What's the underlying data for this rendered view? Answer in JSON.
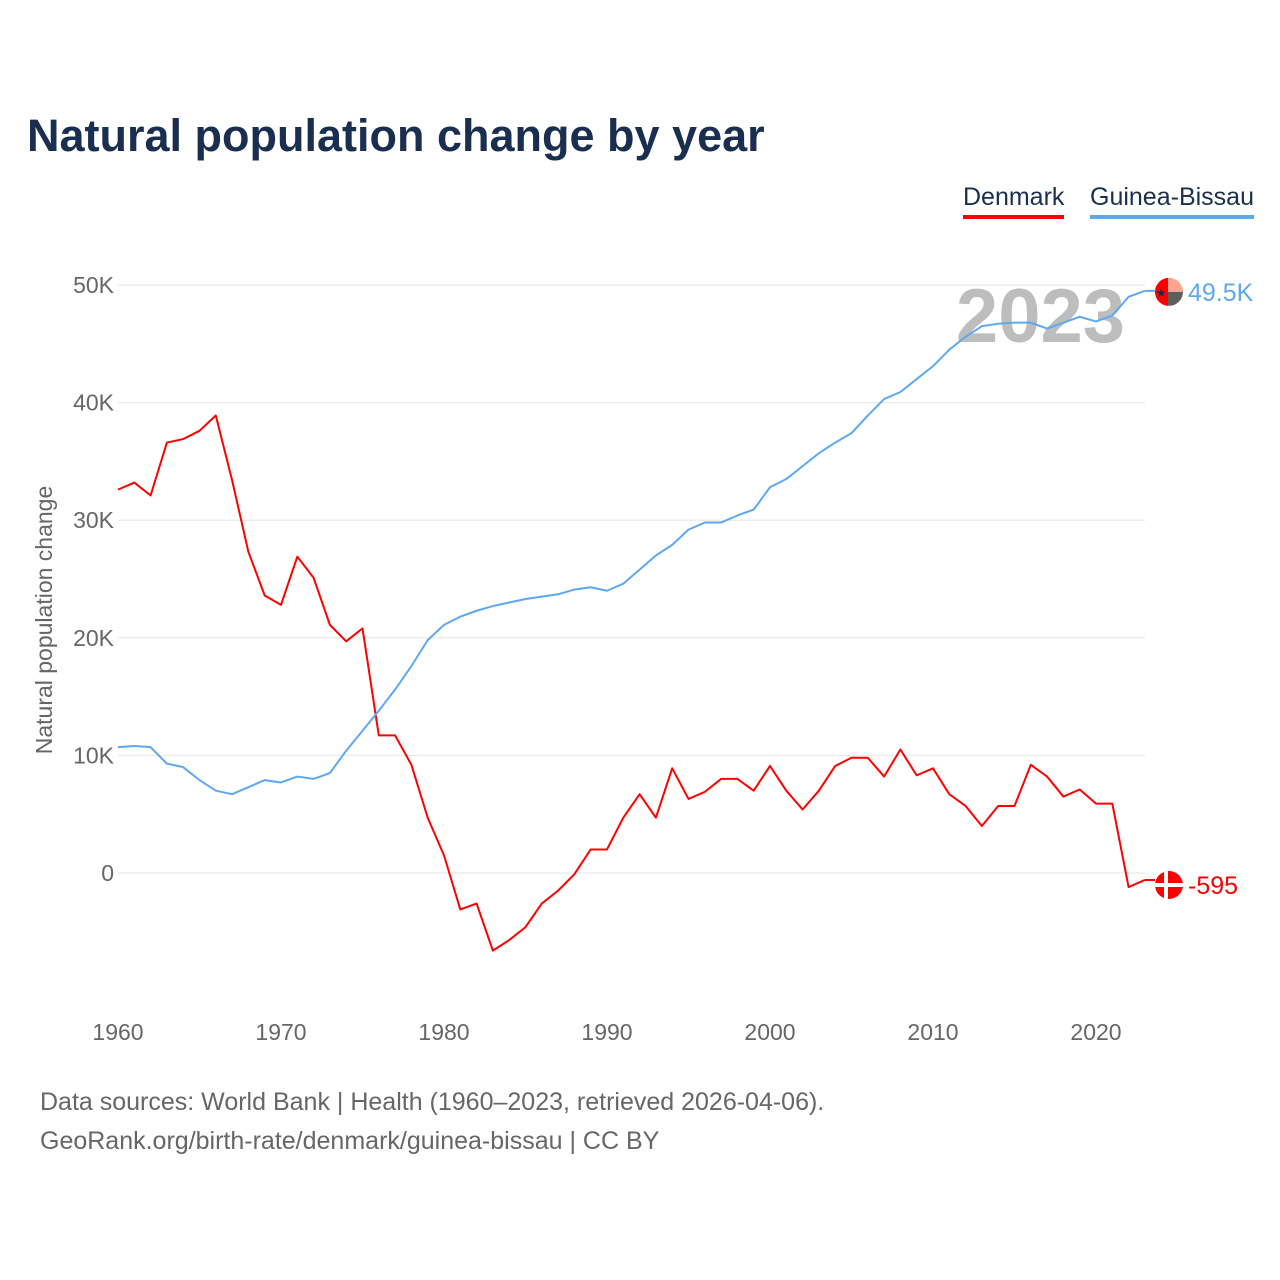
{
  "chart_data": {
    "type": "line",
    "title": "Natural population change by year",
    "ylabel": "Natural population change",
    "xlabel": "",
    "ylim": [
      -11000,
      50500
    ],
    "xlim": [
      1960,
      2026
    ],
    "yticks": [
      0,
      10000,
      20000,
      30000,
      40000,
      50000
    ],
    "ytick_labels": [
      "0",
      "10K",
      "20K",
      "30K",
      "40K",
      "50K"
    ],
    "xticks": [
      1960,
      1970,
      1980,
      1990,
      2000,
      2010,
      2020
    ],
    "xtick_labels": [
      "1960",
      "1970",
      "1980",
      "1990",
      "2000",
      "2010",
      "2020"
    ],
    "grid": true,
    "legend_position": "top-right",
    "year_label": "2023",
    "x": [
      1960,
      1961,
      1962,
      1963,
      1964,
      1965,
      1966,
      1967,
      1968,
      1969,
      1970,
      1971,
      1972,
      1973,
      1974,
      1975,
      1976,
      1977,
      1978,
      1979,
      1980,
      1981,
      1982,
      1983,
      1984,
      1985,
      1986,
      1987,
      1988,
      1989,
      1990,
      1991,
      1992,
      1993,
      1994,
      1995,
      1996,
      1997,
      1998,
      1999,
      2000,
      2001,
      2002,
      2003,
      2004,
      2005,
      2006,
      2007,
      2008,
      2009,
      2010,
      2011,
      2012,
      2013,
      2014,
      2015,
      2016,
      2017,
      2018,
      2019,
      2020,
      2021,
      2022,
      2023
    ],
    "series": [
      {
        "name": "Denmark",
        "color": "#ff0000",
        "end_label": "-595",
        "flag": "denmark-flag",
        "values": [
          32600,
          33200,
          32100,
          36600,
          36900,
          37600,
          38900,
          33400,
          27300,
          23600,
          22800,
          26900,
          25100,
          21100,
          19700,
          20800,
          11700,
          11700,
          9200,
          4700,
          1500,
          -3100,
          -2600,
          -6600,
          -5700,
          -4600,
          -2600,
          -1500,
          -100,
          2000,
          2000,
          4700,
          6700,
          4700,
          8900,
          6300,
          6900,
          8000,
          8000,
          7000,
          9100,
          7000,
          5400,
          7000,
          9100,
          9800,
          9800,
          8200,
          10500,
          8300,
          8900,
          6700,
          5700,
          4000,
          5700,
          5700,
          9200,
          8200,
          6500,
          7100,
          5900,
          5900,
          -1200,
          -595
        ]
      },
      {
        "name": "Guinea-Bissau",
        "color": "#5ea8f0",
        "end_label": "49.5K",
        "flag": "guinea-bissau-flag",
        "values": [
          10700,
          10800,
          10700,
          9300,
          9000,
          7900,
          7000,
          6700,
          7300,
          7900,
          7700,
          8200,
          8000,
          8500,
          10400,
          12100,
          13800,
          15600,
          17600,
          19800,
          21100,
          21800,
          22300,
          22700,
          23000,
          23300,
          23500,
          23700,
          24100,
          24300,
          24000,
          24600,
          25800,
          27000,
          27900,
          29200,
          29800,
          29800,
          30400,
          30900,
          32800,
          33500,
          34600,
          35700,
          36600,
          37400,
          38900,
          40300,
          40900,
          42000,
          43100,
          44500,
          45600,
          46500,
          46700,
          46800,
          46800,
          46300,
          46800,
          47300,
          46900,
          47400,
          49000,
          49500
        ]
      }
    ]
  },
  "footer": {
    "source": "Data sources: World Bank | Health (1960–2023, retrieved 2026-04-06).",
    "url": "GeoRank.org/birth-rate/denmark/guinea-bissau | CC BY"
  }
}
